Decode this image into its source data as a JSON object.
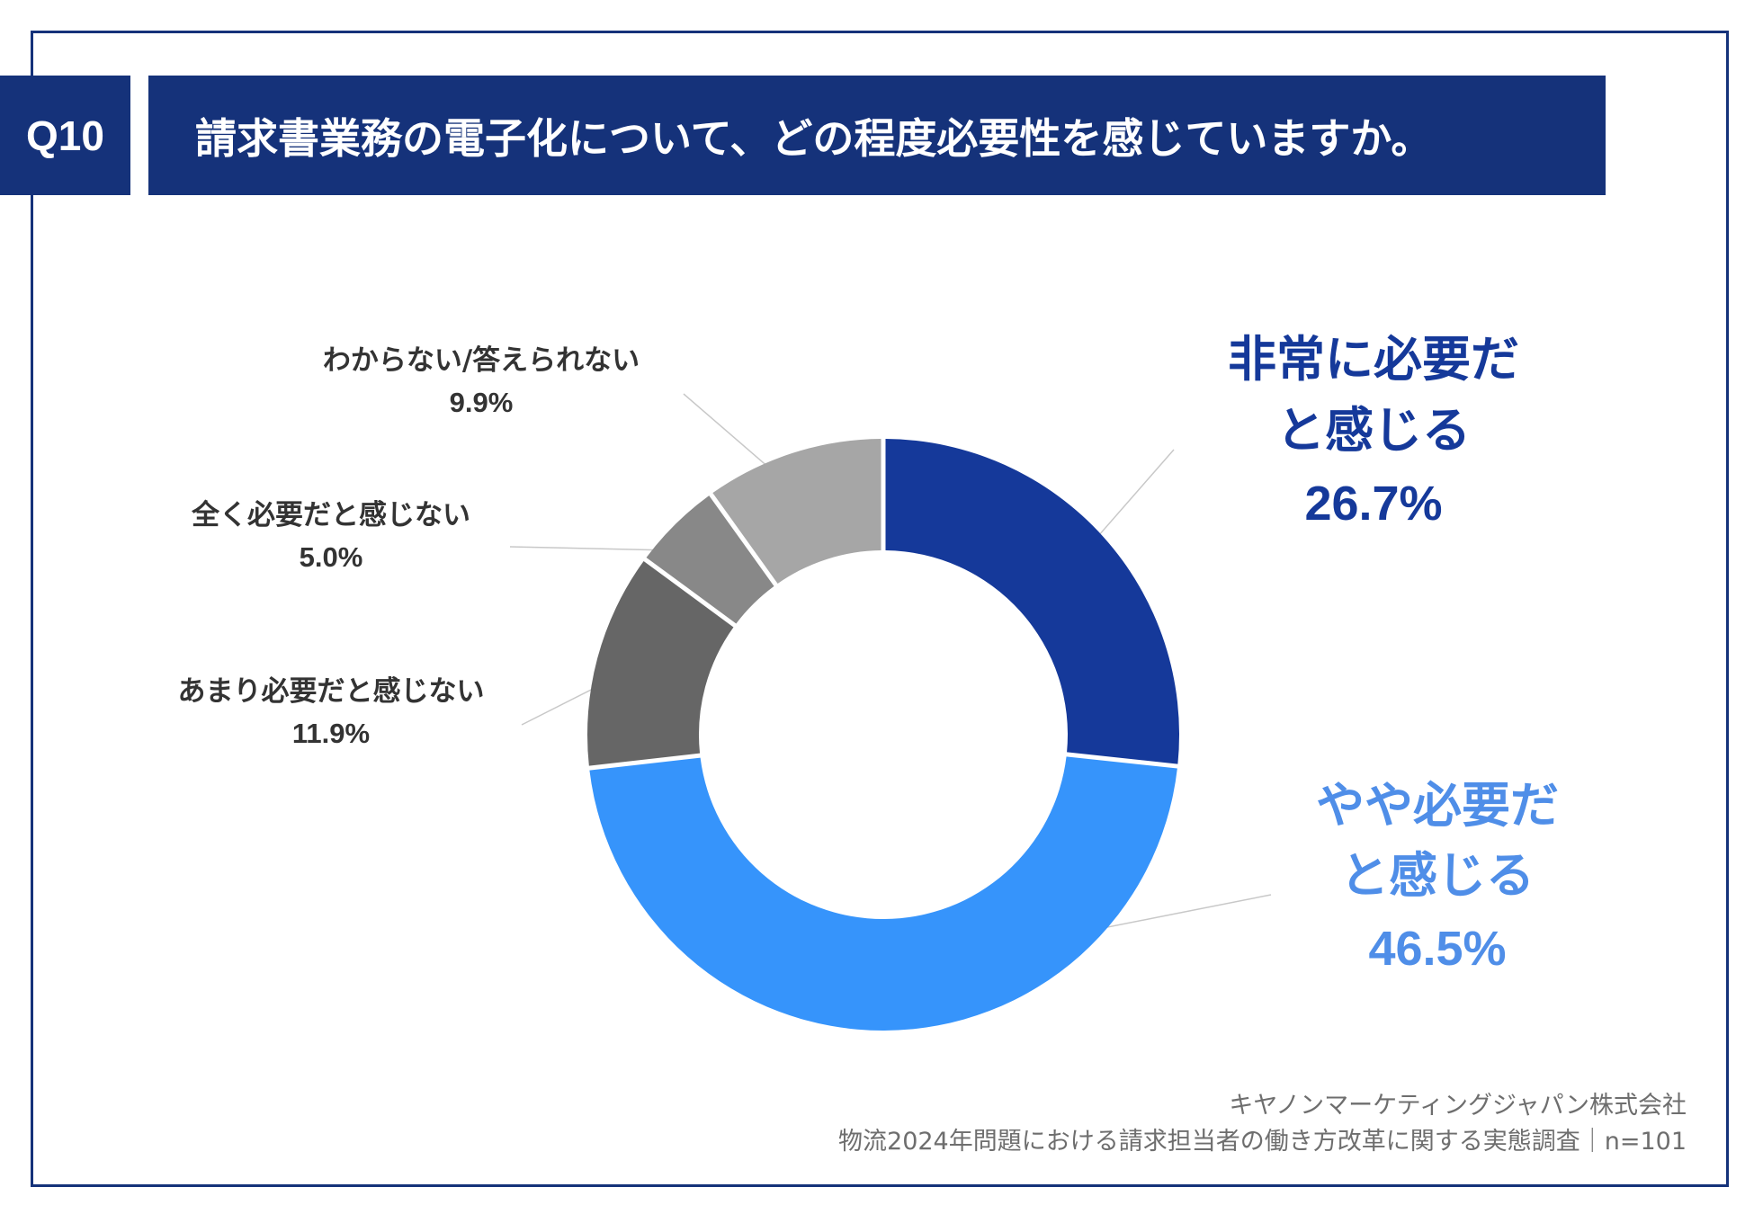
{
  "header": {
    "question_tag": "Q10",
    "title": "請求書業務の電子化について、どの程度必要性を感じていますか。"
  },
  "chart_data": {
    "type": "pie",
    "variant": "donut",
    "start": "top, clockwise",
    "segments": [
      {
        "label_lines": [
          "非常に必要だ",
          "と感じる"
        ],
        "value": 26.7,
        "value_text": "26.7%",
        "color": "#15399a",
        "label_color": "#15399a",
        "label_size": "large"
      },
      {
        "label_lines": [
          "やや必要だ",
          "と感じる"
        ],
        "value": 46.5,
        "value_text": "46.5%",
        "color": "#3694fb",
        "label_color": "#4f8ee8",
        "label_size": "large"
      },
      {
        "label_lines": [
          "あまり必要だと感じない"
        ],
        "value": 11.9,
        "value_text": "11.9%",
        "color": "#666666",
        "label_color": "#333333",
        "label_size": "small"
      },
      {
        "label_lines": [
          "全く必要だと感じない"
        ],
        "value": 5.0,
        "value_text": "5.0%",
        "color": "#888888",
        "label_color": "#333333",
        "label_size": "small"
      },
      {
        "label_lines": [
          "わからない/答えられない"
        ],
        "value": 9.9,
        "value_text": "9.9%",
        "color": "#a6a6a6",
        "label_color": "#333333",
        "label_size": "small"
      }
    ]
  },
  "footer": {
    "company": "キヤノンマーケティングジャパン株式会社",
    "survey": "物流2024年問題における請求担当者の働き方改革に関する実態調査｜n=101"
  }
}
